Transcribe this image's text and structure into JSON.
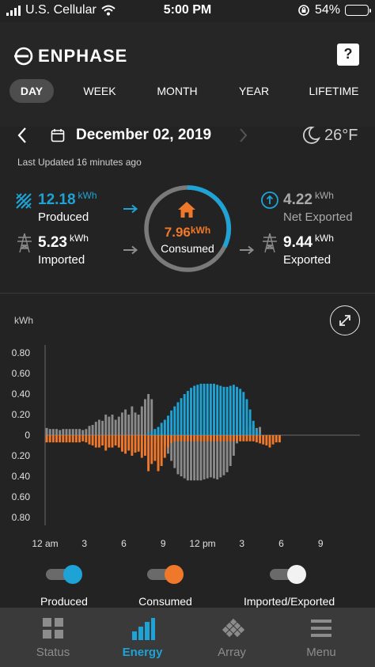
{
  "status_bar": {
    "carrier": "U.S. Cellular",
    "time": "5:00 PM",
    "battery": "54%",
    "battery_level": 0.54
  },
  "header": {
    "brand": "ENPHASE",
    "help": "?"
  },
  "tabs": [
    {
      "label": "DAY",
      "active": true
    },
    {
      "label": "WEEK",
      "active": false
    },
    {
      "label": "MONTH",
      "active": false
    },
    {
      "label": "YEAR",
      "active": false
    },
    {
      "label": "LIFETIME",
      "active": false
    }
  ],
  "date_bar": {
    "date": "December 02, 2019",
    "temperature": "26°F",
    "last_updated": "Last Updated 16 minutes ago"
  },
  "summary": {
    "produced": {
      "value": "12.18",
      "unit": "kWh",
      "label": "Produced"
    },
    "imported": {
      "value": "5.23",
      "unit": "kWh",
      "label": "Imported"
    },
    "consumed": {
      "value": "7.96",
      "unit": "kWh",
      "label": "Consumed"
    },
    "net_exported": {
      "value": "4.22",
      "unit": "kWh",
      "label": "Net Exported"
    },
    "exported": {
      "value": "9.44",
      "unit": "kWh",
      "label": "Exported"
    }
  },
  "colors": {
    "produced": "#1ea3d6",
    "consumed": "#f0782b",
    "grid": "#8a8a8a",
    "background": "#232323"
  },
  "chart_unit_label": "kWh",
  "chart_data": {
    "type": "bar",
    "ylabel": "kWh",
    "ylim": [
      -0.8,
      0.8
    ],
    "y_ticks": [
      "0.80",
      "0.60",
      "0.40",
      "0.20",
      "0",
      "0.20",
      "0.40",
      "0.60",
      "0.80"
    ],
    "y_tick_values": [
      0.8,
      0.6,
      0.4,
      0.2,
      0,
      -0.2,
      -0.4,
      -0.6,
      -0.8
    ],
    "x_ticks": [
      "12 am",
      "3",
      "6",
      "9",
      "12 pm",
      "3",
      "6",
      "9"
    ],
    "x_tick_hours": [
      0,
      3,
      6,
      9,
      12,
      15,
      18,
      21
    ],
    "interval_hours": 0.25,
    "series": [
      {
        "name": "Produced",
        "start_hour": 7.75,
        "values": [
          0.02,
          0.04,
          0.06,
          0.08,
          0.12,
          0.15,
          0.19,
          0.24,
          0.28,
          0.32,
          0.36,
          0.4,
          0.43,
          0.46,
          0.48,
          0.49,
          0.5,
          0.5,
          0.5,
          0.5,
          0.5,
          0.49,
          0.48,
          0.47,
          0.47,
          0.48,
          0.49,
          0.47,
          0.45,
          0.42,
          0.35,
          0.25,
          0.14,
          0.06,
          0.02
        ]
      },
      {
        "name": "Consumed",
        "start_hour": 0,
        "values": [
          0.07,
          0.07,
          0.07,
          0.07,
          0.07,
          0.07,
          0.07,
          0.07,
          0.07,
          0.07,
          0.07,
          0.06,
          0.07,
          0.09,
          0.1,
          0.12,
          0.12,
          0.1,
          0.15,
          0.12,
          0.12,
          0.1,
          0.12,
          0.16,
          0.18,
          0.15,
          0.2,
          0.17,
          0.16,
          0.22,
          0.2,
          0.35,
          0.28,
          0.25,
          0.35,
          0.3,
          0.22,
          0.12,
          0.08,
          0.06,
          0.06,
          0.06,
          0.06,
          0.06,
          0.06,
          0.06,
          0.06,
          0.06,
          0.06,
          0.06,
          0.06,
          0.06,
          0.06,
          0.06,
          0.06,
          0.06,
          0.06,
          0.06,
          0.06,
          0.06,
          0.06,
          0.06,
          0.06,
          0.06,
          0.07,
          0.08,
          0.09,
          0.1,
          0.12,
          0.09,
          0.07,
          0.07
        ]
      },
      {
        "name": "Imported/Exported",
        "start_hour": 0,
        "values": [
          0.07,
          0.06,
          0.06,
          0.06,
          0.05,
          0.06,
          0.06,
          0.06,
          0.06,
          0.06,
          0.06,
          0.05,
          0.06,
          0.09,
          0.1,
          0.13,
          0.15,
          0.14,
          0.2,
          0.18,
          0.2,
          0.15,
          0.18,
          0.22,
          0.25,
          0.2,
          0.28,
          0.22,
          0.2,
          0.28,
          0.35,
          0.4,
          0.35,
          -0.08,
          -0.05,
          0.02,
          -0.1,
          -0.18,
          -0.25,
          -0.32,
          -0.38,
          -0.4,
          -0.42,
          -0.44,
          -0.44,
          -0.44,
          -0.44,
          -0.44,
          -0.43,
          -0.42,
          -0.41,
          -0.42,
          -0.43,
          -0.41,
          -0.39,
          -0.36,
          -0.3,
          -0.2,
          -0.08,
          0.0,
          0.05,
          0.07,
          0.09,
          0.1,
          0.07,
          0.08
        ]
      }
    ]
  },
  "legend": [
    {
      "label": "Produced",
      "color": "#1ea3d6"
    },
    {
      "label": "Consumed",
      "color": "#f0782b"
    },
    {
      "label": "Imported/Exported",
      "color": "#f2f2f2"
    }
  ],
  "nav": [
    {
      "label": "Status",
      "icon": "status-grid-icon",
      "active": false
    },
    {
      "label": "Energy",
      "icon": "energy-bars-icon",
      "active": true
    },
    {
      "label": "Array",
      "icon": "array-panels-icon",
      "active": false
    },
    {
      "label": "Menu",
      "icon": "menu-icon",
      "active": false
    }
  ]
}
